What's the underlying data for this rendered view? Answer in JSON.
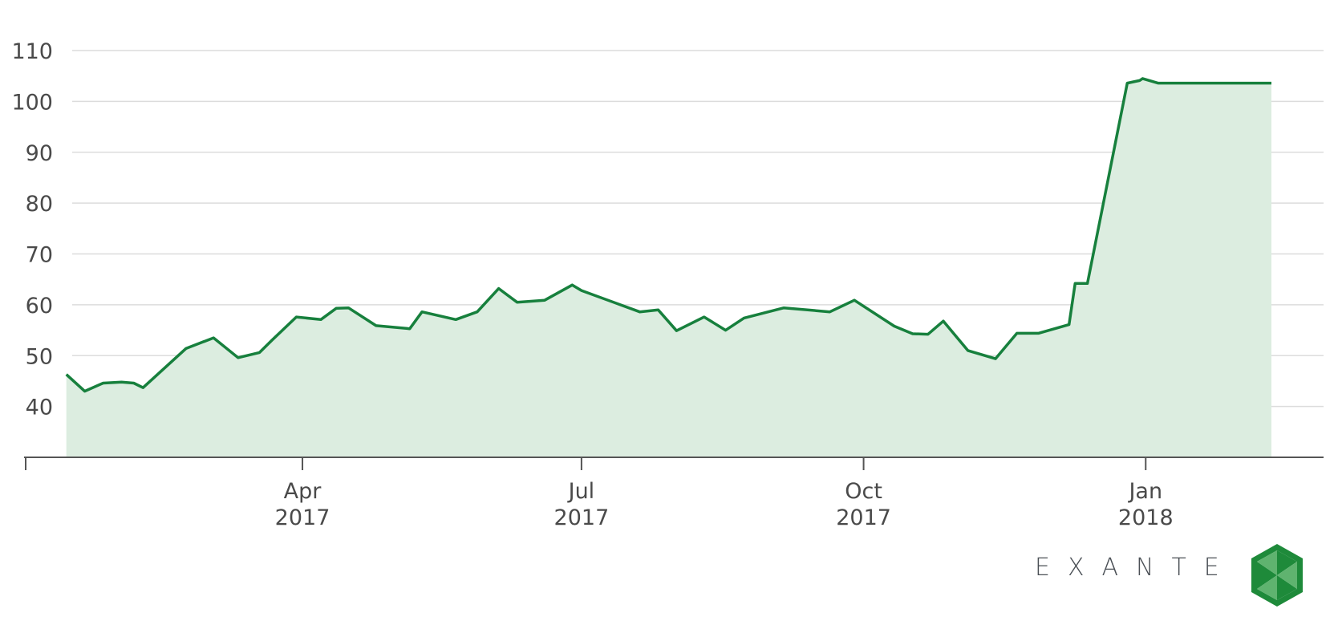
{
  "chart_data": {
    "type": "area",
    "title": "",
    "xlabel": "",
    "ylabel": "",
    "ylim": [
      30,
      110
    ],
    "yticks": [
      40,
      50,
      60,
      70,
      80,
      90,
      100,
      110
    ],
    "grid": true,
    "xticks": [
      {
        "date": "2017-04-01",
        "line1": "Apr",
        "line2": "2017"
      },
      {
        "date": "2017-07-01",
        "line1": "Jul",
        "line2": "2017"
      },
      {
        "date": "2017-10-01",
        "line1": "Oct",
        "line2": "2017"
      },
      {
        "date": "2018-01-01",
        "line1": "Jan",
        "line2": "2018"
      }
    ],
    "xlim": [
      "2017-01-01",
      "2018-02-11"
    ],
    "series": [
      {
        "x": [
          "2017-01-14",
          "2017-01-20",
          "2017-01-26",
          "2017-02-01",
          "2017-02-05",
          "2017-02-08",
          "2017-02-22",
          "2017-03-03",
          "2017-03-11",
          "2017-03-18",
          "2017-03-22",
          "2017-03-30",
          "2017-04-07",
          "2017-04-12",
          "2017-04-16",
          "2017-04-25",
          "2017-05-06",
          "2017-05-10",
          "2017-05-21",
          "2017-05-28",
          "2017-06-04",
          "2017-06-10",
          "2017-06-19",
          "2017-06-28",
          "2017-07-01",
          "2017-07-20",
          "2017-07-26",
          "2017-08-01",
          "2017-08-10",
          "2017-08-17",
          "2017-08-23",
          "2017-09-05",
          "2017-09-20",
          "2017-09-28",
          "2017-10-11",
          "2017-10-17",
          "2017-10-22",
          "2017-10-27",
          "2017-11-04",
          "2017-11-13",
          "2017-11-20",
          "2017-11-27",
          "2017-12-07",
          "2017-12-09",
          "2017-12-13",
          "2017-12-26",
          "2017-12-30",
          "2017-12-31",
          "2018-01-05",
          "2018-01-12",
          "2018-01-21",
          "2018-01-27",
          "2018-01-28",
          "2018-02-01",
          "2018-02-11"
        ],
        "values": [
          46.3,
          43.0,
          44.6,
          44.8,
          44.6,
          43.7,
          51.4,
          53.5,
          49.6,
          50.6,
          53.0,
          57.6,
          57.1,
          59.3,
          59.4,
          55.9,
          55.3,
          58.6,
          57.1,
          58.6,
          63.2,
          60.5,
          60.9,
          63.9,
          62.8,
          58.6,
          59.0,
          54.9,
          57.6,
          55.0,
          57.4,
          59.4,
          58.6,
          60.9,
          55.8,
          54.3,
          54.2,
          56.8,
          51.0,
          49.4,
          54.4,
          54.4,
          56.1,
          64.2,
          64.2,
          103.6,
          104.1,
          104.5,
          103.6,
          103.6,
          103.6,
          103.6,
          103.6,
          103.6,
          103.6
        ]
      }
    ],
    "line_color": "#17803d",
    "fill_color": "#dcede0"
  },
  "brand": {
    "name": "EXANTE",
    "logo_icon": "exante-hexagon-logo-icon",
    "logo_color": "#1e8a3a"
  }
}
